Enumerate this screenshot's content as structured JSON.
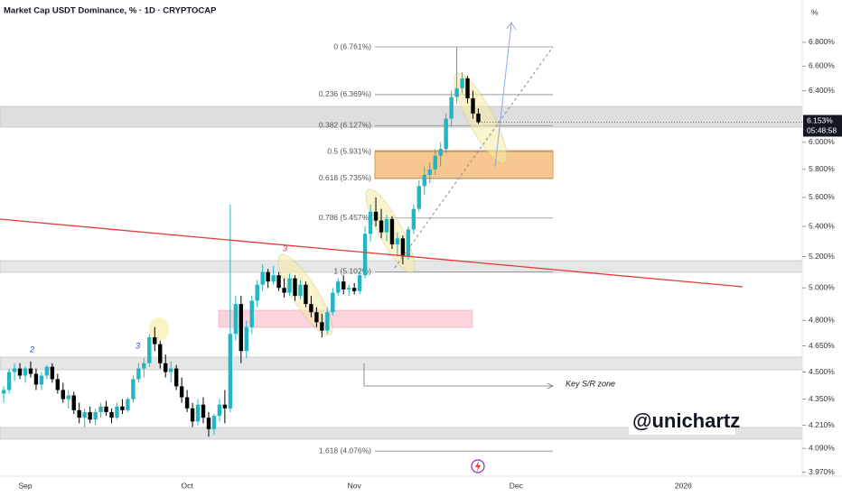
{
  "chart_data": {
    "type": "candlestick",
    "title": "Market Cap USDT Dominance, % · 1D · CRYPTOCAP",
    "axis_unit": "%",
    "log_scale": true,
    "grid": false,
    "up_color": "#22b5c4",
    "down_color": "#000000",
    "categories": [
      null,
      null,
      null,
      null,
      "Sep",
      null,
      null,
      null,
      null,
      null,
      null,
      null,
      null,
      null,
      null,
      null,
      null,
      null,
      null,
      null,
      null,
      null,
      null,
      null,
      null,
      null,
      null,
      null,
      null,
      null,
      null,
      null,
      null,
      null,
      "Oct",
      null,
      null,
      null,
      null,
      null,
      null,
      null,
      null,
      null,
      null,
      null,
      null,
      null,
      null,
      null,
      null,
      null,
      null,
      null,
      null,
      null,
      null,
      null,
      null,
      null,
      null,
      null,
      null,
      null,
      null,
      "Nov",
      null,
      null,
      null,
      null,
      null,
      null,
      null,
      null,
      null,
      null,
      null,
      null,
      null,
      null,
      null,
      null,
      null,
      null,
      null,
      null,
      null,
      null,
      null,
      null,
      null,
      null,
      null,
      null,
      null,
      "Dec",
      null,
      null,
      null,
      null,
      null,
      null,
      null,
      null,
      null,
      null,
      null,
      null,
      null,
      null,
      null,
      null,
      null,
      null,
      null,
      null,
      null,
      null,
      null,
      null,
      null,
      null,
      null,
      null,
      null,
      null,
      "2026",
      null,
      null,
      null,
      null,
      null,
      null,
      null,
      null,
      null,
      null,
      null,
      null,
      null,
      null,
      null,
      null,
      null,
      null,
      null,
      null,
      null
    ],
    "open": [
      4.38,
      4.4,
      4.5,
      4.52,
      4.48,
      4.52,
      4.49,
      4.43,
      4.48,
      4.53,
      4.46,
      4.4,
      4.35,
      4.37,
      4.29,
      4.25,
      4.28,
      4.24,
      4.28,
      4.31,
      4.28,
      4.25,
      4.31,
      4.29,
      4.35,
      4.46,
      4.52,
      4.55,
      4.7,
      4.66,
      4.55,
      4.5,
      4.52,
      4.42,
      4.36,
      4.3,
      4.23,
      4.32,
      4.25,
      4.19,
      4.26,
      4.32,
      4.3,
      4.72,
      4.9,
      4.62,
      4.76,
      4.92,
      5.02,
      5.1,
      5.04,
      5.08,
      5.0,
      4.97,
      5.06,
      4.95,
      5.02,
      4.9,
      4.85,
      4.79,
      4.74,
      4.85,
      4.97,
      5.04,
      4.99,
      5.0,
      4.98,
      5.08,
      5.35,
      5.5,
      5.44,
      5.36,
      5.45,
      5.28,
      5.32,
      5.2,
      5.38,
      5.52,
      5.68,
      5.76,
      5.8,
      5.9,
      5.95,
      6.18,
      6.35,
      6.42,
      6.5,
      6.34,
      6.22,
      null,
      null,
      null,
      null,
      null,
      null,
      null,
      null,
      null,
      null,
      null,
      null,
      null,
      null,
      null,
      null,
      null,
      null,
      null,
      null,
      null,
      null,
      null,
      null,
      null,
      null,
      null,
      null,
      null,
      null,
      null,
      null,
      null,
      null,
      null,
      null,
      null,
      null,
      null,
      null,
      null,
      null,
      null,
      null,
      null,
      null,
      null,
      null,
      null,
      null,
      null,
      null,
      null,
      null,
      null,
      null,
      null,
      null,
      null
    ],
    "high": [
      4.42,
      4.52,
      4.55,
      4.55,
      4.53,
      4.56,
      4.52,
      4.5,
      4.54,
      4.55,
      4.49,
      4.44,
      4.4,
      4.39,
      4.33,
      4.3,
      4.31,
      4.3,
      4.33,
      4.34,
      4.3,
      4.33,
      4.35,
      4.36,
      4.48,
      4.55,
      4.58,
      4.72,
      4.76,
      4.68,
      4.6,
      4.56,
      4.54,
      4.47,
      4.4,
      4.33,
      4.35,
      4.36,
      4.28,
      4.27,
      4.35,
      4.4,
      5.55,
      4.95,
      4.95,
      4.8,
      4.95,
      5.05,
      5.15,
      5.12,
      5.14,
      5.1,
      5.06,
      5.09,
      5.08,
      5.05,
      5.04,
      4.95,
      4.88,
      4.84,
      4.88,
      5.0,
      5.06,
      5.08,
      5.02,
      5.03,
      5.1,
      5.4,
      5.55,
      5.6,
      5.52,
      5.48,
      5.47,
      5.36,
      5.34,
      5.4,
      5.55,
      5.72,
      5.82,
      5.85,
      5.95,
      6.0,
      6.22,
      6.4,
      6.76,
      6.55,
      6.52,
      6.4,
      6.26,
      null,
      null,
      null,
      null,
      null,
      null,
      null,
      null,
      null,
      null,
      null,
      null,
      null,
      null,
      null,
      null,
      null,
      null,
      null,
      null,
      null,
      null,
      null,
      null,
      null,
      null,
      null,
      null,
      null,
      null,
      null,
      null,
      null,
      null,
      null,
      null,
      null,
      null,
      null,
      null,
      null,
      null,
      null,
      null,
      null,
      null,
      null,
      null,
      null,
      null,
      null,
      null,
      null,
      null,
      null,
      null,
      null,
      null,
      null
    ],
    "low": [
      4.33,
      4.38,
      4.45,
      4.46,
      4.44,
      4.47,
      4.4,
      4.4,
      4.46,
      4.44,
      4.38,
      4.33,
      4.3,
      4.27,
      4.22,
      4.2,
      4.22,
      4.21,
      4.25,
      4.26,
      4.22,
      4.24,
      4.27,
      4.28,
      4.33,
      4.44,
      4.47,
      4.53,
      4.62,
      4.52,
      4.47,
      4.44,
      4.4,
      4.33,
      4.28,
      4.2,
      4.21,
      4.22,
      4.15,
      4.16,
      4.23,
      4.22,
      4.28,
      4.68,
      4.55,
      4.58,
      4.72,
      4.88,
      4.98,
      5.0,
      5.02,
      4.98,
      4.94,
      4.95,
      4.92,
      4.93,
      4.88,
      4.82,
      4.76,
      4.7,
      4.72,
      4.83,
      4.95,
      4.96,
      4.95,
      4.96,
      4.96,
      5.06,
      5.3,
      5.4,
      5.32,
      5.3,
      5.25,
      5.2,
      5.15,
      5.18,
      5.35,
      5.5,
      5.62,
      5.7,
      5.76,
      5.82,
      5.92,
      6.12,
      6.3,
      6.38,
      6.3,
      6.18,
      6.14,
      null,
      null,
      null,
      null,
      null,
      null,
      null,
      null,
      null,
      null,
      null,
      null,
      null,
      null,
      null,
      null,
      null,
      null,
      null,
      null,
      null,
      null,
      null,
      null,
      null,
      null,
      null,
      null,
      null,
      null,
      null,
      null,
      null,
      null,
      null,
      null,
      null,
      null,
      null,
      null,
      null,
      null,
      null,
      null,
      null,
      null,
      null,
      null,
      null,
      null,
      null,
      null,
      null,
      null,
      null,
      null,
      null,
      null,
      null
    ],
    "close": [
      4.4,
      4.5,
      4.52,
      4.48,
      4.52,
      4.49,
      4.43,
      4.48,
      4.53,
      4.46,
      4.4,
      4.35,
      4.37,
      4.29,
      4.25,
      4.28,
      4.24,
      4.28,
      4.31,
      4.28,
      4.25,
      4.31,
      4.29,
      4.35,
      4.46,
      4.52,
      4.55,
      4.7,
      4.66,
      4.55,
      4.5,
      4.52,
      4.42,
      4.36,
      4.3,
      4.23,
      4.32,
      4.25,
      4.19,
      4.26,
      4.32,
      4.3,
      4.72,
      4.9,
      4.62,
      4.76,
      4.92,
      5.02,
      5.1,
      5.04,
      5.08,
      5.0,
      4.97,
      5.06,
      4.95,
      5.02,
      4.9,
      4.85,
      4.79,
      4.74,
      4.85,
      4.97,
      5.04,
      4.99,
      5.0,
      4.98,
      5.08,
      5.35,
      5.5,
      5.44,
      5.36,
      5.45,
      5.28,
      5.32,
      5.2,
      5.38,
      5.52,
      5.68,
      5.76,
      5.8,
      5.9,
      5.95,
      6.18,
      6.35,
      6.42,
      6.5,
      6.34,
      6.22,
      6.153,
      null,
      null,
      null,
      null,
      null,
      null,
      null,
      null,
      null,
      null,
      null,
      null,
      null,
      null,
      null,
      null,
      null,
      null,
      null,
      null,
      null,
      null,
      null,
      null,
      null,
      null,
      null,
      null,
      null,
      null,
      null,
      null,
      null,
      null,
      null,
      null,
      null,
      null,
      null,
      null,
      null,
      null,
      null,
      null,
      null,
      null,
      null,
      null,
      null,
      null,
      null,
      null,
      null,
      null,
      null,
      null,
      null,
      null,
      null
    ],
    "ylim": [
      3.95,
      7.17
    ],
    "yticks": [
      {
        "value": 3.97,
        "label": "3.970%"
      },
      {
        "value": 4.09,
        "label": "4.090%"
      },
      {
        "value": 4.21,
        "label": "4.210%"
      },
      {
        "value": 4.35,
        "label": "4.350%"
      },
      {
        "value": 4.5,
        "label": "4.500%"
      },
      {
        "value": 4.65,
        "label": "4.650%"
      },
      {
        "value": 4.8,
        "label": "4.800%"
      },
      {
        "value": 5.0,
        "label": "5.000%"
      },
      {
        "value": 5.2,
        "label": "5.200%"
      },
      {
        "value": 5.4,
        "label": "5.400%"
      },
      {
        "value": 5.6,
        "label": "5.600%"
      },
      {
        "value": 5.8,
        "label": "5.800%"
      },
      {
        "value": 6.0,
        "label": "6.000%"
      },
      {
        "value": 6.4,
        "label": "6.400%"
      },
      {
        "value": 6.6,
        "label": "6.600%"
      },
      {
        "value": 6.8,
        "label": "6.800%"
      }
    ],
    "last_price": {
      "value": 6.153,
      "label": "6.153%"
    },
    "countdown": "05:48:58",
    "fib_levels": [
      {
        "value": 6.761,
        "label": "0 (6.761%)"
      },
      {
        "value": 6.369,
        "label": "0.236 (6.369%)"
      },
      {
        "value": 6.127,
        "label": "0.382 (6.127%)"
      },
      {
        "value": 5.931,
        "label": "0.5 (5.931%)"
      },
      {
        "value": 5.735,
        "label": "0.618 (5.735%)"
      },
      {
        "value": 5.457,
        "label": "0.786 (5.457%)"
      },
      {
        "value": 5.102,
        "label": "1 (5.102%)"
      },
      {
        "value": 4.076,
        "label": "1.618 (4.076%)"
      }
    ],
    "wave_labels": [
      "2",
      "3",
      "3"
    ],
    "zone_label": "Key S/R zone",
    "watermark": "@unichartz"
  }
}
